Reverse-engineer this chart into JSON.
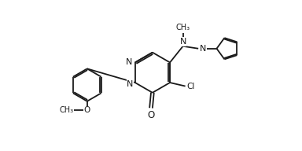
{
  "background_color": "#ffffff",
  "line_color": "#1a1a1a",
  "line_width": 1.3,
  "font_size": 7.5,
  "figsize": [
    3.84,
    1.92
  ],
  "dpi": 100,
  "xlim": [
    0,
    10
  ],
  "ylim": [
    0,
    5
  ]
}
